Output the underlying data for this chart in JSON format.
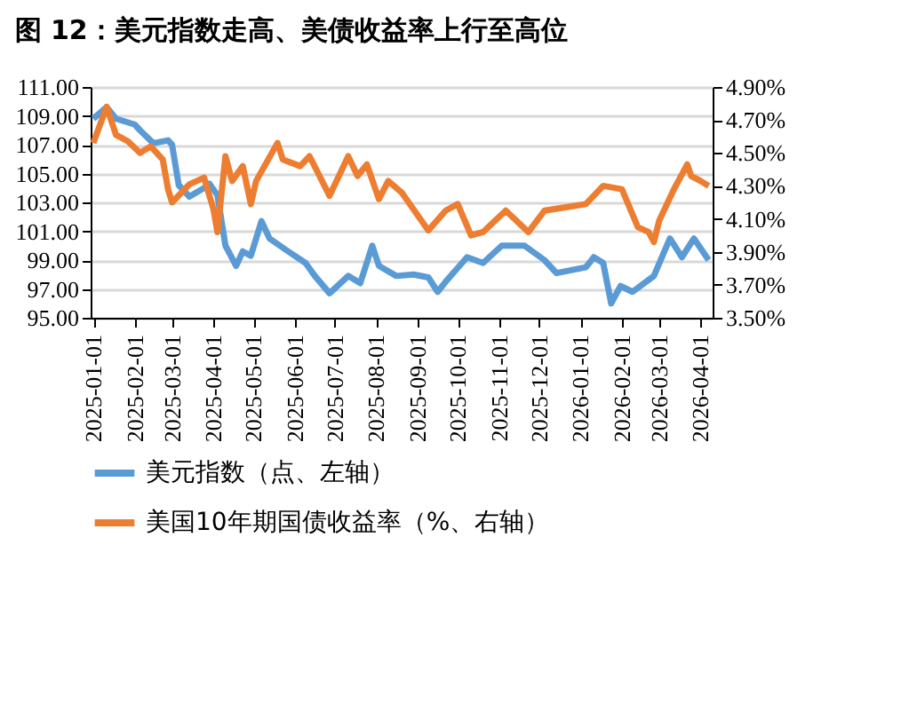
{
  "chart_data": {
    "type": "line",
    "title": "图 12：美元指数走高、美债收益率上行至高位",
    "grid": "y",
    "legend": "bottom",
    "marker": "none",
    "line_style": "solid",
    "xlim": [
      "2024-12-30",
      "2026-04-10"
    ],
    "xticks": [
      {
        "value": "2025-01-01",
        "label": "2025-01-01"
      },
      {
        "value": "2025-02-01",
        "label": "2025-02-01"
      },
      {
        "value": "2025-03-01",
        "label": "2025-03-01"
      },
      {
        "value": "2025-04-01",
        "label": "2025-04-01"
      },
      {
        "value": "2025-05-01",
        "label": "2025-05-01"
      },
      {
        "value": "2025-06-01",
        "label": "2025-06-01"
      },
      {
        "value": "2025-07-01",
        "label": "2025-07-01"
      },
      {
        "value": "2025-08-01",
        "label": "2025-08-01"
      },
      {
        "value": "2025-09-01",
        "label": "2025-09-01"
      },
      {
        "value": "2025-10-01",
        "label": "2025-10-01"
      },
      {
        "value": "2025-11-01",
        "label": "2025-11-01"
      },
      {
        "value": "2025-12-01",
        "label": "2025-12-01"
      },
      {
        "value": "2026-01-01",
        "label": "2026-01-01"
      },
      {
        "value": "2026-02-01",
        "label": "2026-02-01"
      },
      {
        "value": "2026-03-01",
        "label": "2026-03-01"
      },
      {
        "value": "2026-04-01",
        "label": "2026-04-01"
      }
    ],
    "ylim": [
      95,
      111
    ],
    "yticks": [
      {
        "value": 95,
        "label": "95.00"
      },
      {
        "value": 97,
        "label": "97.00"
      },
      {
        "value": 99,
        "label": "99.00"
      },
      {
        "value": 101,
        "label": "101.00"
      },
      {
        "value": 103,
        "label": "103.00"
      },
      {
        "value": 105,
        "label": "105.00"
      },
      {
        "value": 107,
        "label": "107.00"
      },
      {
        "value": 109,
        "label": "109.00"
      },
      {
        "value": 111,
        "label": "111.00"
      }
    ],
    "y2lim": [
      3.5,
      4.9
    ],
    "y2ticks": [
      {
        "value": 3.5,
        "label": "3.50%"
      },
      {
        "value": 3.7,
        "label": "3.70%"
      },
      {
        "value": 3.9,
        "label": "3.90%"
      },
      {
        "value": 4.1,
        "label": "4.10%"
      },
      {
        "value": 4.3,
        "label": "4.30%"
      },
      {
        "value": 4.5,
        "label": "4.50%"
      },
      {
        "value": 4.7,
        "label": "4.70%"
      },
      {
        "value": 4.9,
        "label": "4.90%"
      }
    ],
    "series": [
      {
        "name": "美元指数（点、左轴）",
        "color": "#5b9bd5",
        "axis": "y",
        "x": [
          "2025-01-01",
          "2025-01-11",
          "2025-01-18",
          "2025-02-01",
          "2025-02-05",
          "2025-02-15",
          "2025-02-26",
          "2025-03-01",
          "2025-03-06",
          "2025-03-14",
          "2025-03-25",
          "2025-03-29",
          "2025-04-04",
          "2025-04-10",
          "2025-04-18",
          "2025-04-23",
          "2025-04-29",
          "2025-05-07",
          "2025-05-13",
          "2025-05-27",
          "2025-06-09",
          "2025-06-16",
          "2025-06-27",
          "2025-07-11",
          "2025-07-20",
          "2025-07-29",
          "2025-08-03",
          "2025-08-16",
          "2025-08-29",
          "2025-09-09",
          "2025-09-16",
          "2025-09-22",
          "2025-10-08",
          "2025-10-20",
          "2025-11-03",
          "2025-11-20",
          "2025-12-05",
          "2025-12-14",
          "2026-01-05",
          "2026-01-11",
          "2026-01-18",
          "2026-01-24",
          "2026-01-31",
          "2026-02-09",
          "2026-02-25",
          "2026-03-09",
          "2026-03-18",
          "2026-03-27",
          "2026-04-07"
        ],
        "values": [
          108.8,
          109.6,
          108.8,
          108.4,
          108.0,
          107.1,
          107.3,
          107.0,
          104.2,
          103.4,
          104.0,
          104.3,
          103.5,
          100.0,
          98.6,
          99.6,
          99.3,
          101.7,
          100.5,
          99.6,
          98.8,
          97.9,
          96.7,
          97.9,
          97.4,
          100.0,
          98.6,
          97.9,
          98.0,
          97.8,
          96.8,
          97.5,
          99.2,
          98.8,
          100.0,
          100.0,
          99.0,
          98.1,
          98.5,
          99.2,
          98.8,
          96.0,
          97.2,
          96.8,
          97.9,
          100.5,
          99.2,
          100.5,
          99.0
        ]
      },
      {
        "name": "美国10年期国债收益率（%、右轴）",
        "color": "#ed7d31",
        "axis": "y2",
        "x": [
          "2025-01-01",
          "2025-01-11",
          "2025-01-18",
          "2025-01-27",
          "2025-02-05",
          "2025-02-13",
          "2025-02-22",
          "2025-02-26",
          "2025-03-01",
          "2025-03-14",
          "2025-03-25",
          "2025-04-01",
          "2025-04-04",
          "2025-04-10",
          "2025-04-15",
          "2025-04-23",
          "2025-04-29",
          "2025-05-03",
          "2025-05-19",
          "2025-05-23",
          "2025-06-05",
          "2025-06-12",
          "2025-06-27",
          "2025-07-11",
          "2025-07-18",
          "2025-07-25",
          "2025-08-03",
          "2025-08-10",
          "2025-08-20",
          "2025-09-09",
          "2025-09-22",
          "2025-10-01",
          "2025-10-11",
          "2025-10-20",
          "2025-11-06",
          "2025-11-23",
          "2025-12-05",
          "2025-12-21",
          "2026-01-05",
          "2026-01-18",
          "2026-02-01",
          "2026-02-13",
          "2026-02-21",
          "2026-02-25",
          "2026-03-01",
          "2026-03-12",
          "2026-03-22",
          "2026-03-25",
          "2026-04-01",
          "2026-04-07"
        ],
        "values": [
          4.56,
          4.78,
          4.61,
          4.57,
          4.5,
          4.54,
          4.46,
          4.28,
          4.2,
          4.31,
          4.35,
          4.16,
          4.02,
          4.48,
          4.33,
          4.42,
          4.19,
          4.33,
          4.56,
          4.46,
          4.42,
          4.48,
          4.24,
          4.48,
          4.36,
          4.43,
          4.22,
          4.33,
          4.26,
          4.03,
          4.15,
          4.19,
          4.0,
          4.02,
          4.15,
          4.02,
          4.15,
          4.17,
          4.19,
          4.3,
          4.28,
          4.05,
          4.02,
          3.96,
          4.09,
          4.28,
          4.43,
          4.36,
          4.33,
          4.3
        ]
      }
    ]
  }
}
